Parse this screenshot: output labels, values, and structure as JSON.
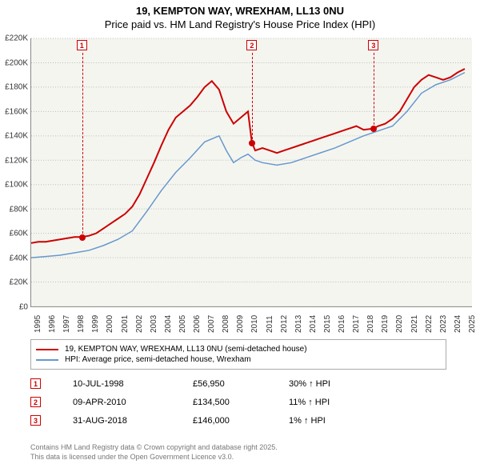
{
  "title": {
    "line1": "19, KEMPTON WAY, WREXHAM, LL13 0NU",
    "line2": "Price paid vs. HM Land Registry's House Price Index (HPI)"
  },
  "chart": {
    "type": "line",
    "background_color": "#f5f5f0",
    "grid_color": "#bbbbbb",
    "xlim": [
      1995,
      2025.5
    ],
    "ylim": [
      0,
      220000
    ],
    "yticks": [
      0,
      20000,
      40000,
      60000,
      80000,
      100000,
      120000,
      140000,
      160000,
      180000,
      200000,
      220000
    ],
    "ytick_labels": [
      "£0",
      "£20K",
      "£40K",
      "£60K",
      "£80K",
      "£100K",
      "£120K",
      "£140K",
      "£160K",
      "£180K",
      "£200K",
      "£220K"
    ],
    "xticks": [
      1995,
      1996,
      1997,
      1998,
      1999,
      2000,
      2001,
      2002,
      2003,
      2004,
      2005,
      2006,
      2007,
      2008,
      2009,
      2010,
      2011,
      2012,
      2013,
      2014,
      2015,
      2016,
      2017,
      2018,
      2019,
      2020,
      2021,
      2022,
      2023,
      2024,
      2025
    ],
    "label_fontsize": 10,
    "series": [
      {
        "name": "19, KEMPTON WAY, WREXHAM, LL13 0NU (semi-detached house)",
        "color": "#cc0000",
        "line_width": 2,
        "data": [
          [
            1995,
            52000
          ],
          [
            1995.5,
            53000
          ],
          [
            1996,
            53000
          ],
          [
            1996.5,
            54000
          ],
          [
            1997,
            55000
          ],
          [
            1997.5,
            56000
          ],
          [
            1998,
            57000
          ],
          [
            1998.5,
            56950
          ],
          [
            1999,
            58000
          ],
          [
            1999.5,
            60000
          ],
          [
            2000,
            64000
          ],
          [
            2000.5,
            68000
          ],
          [
            2001,
            72000
          ],
          [
            2001.5,
            76000
          ],
          [
            2002,
            82000
          ],
          [
            2002.5,
            92000
          ],
          [
            2003,
            105000
          ],
          [
            2003.5,
            118000
          ],
          [
            2004,
            132000
          ],
          [
            2004.5,
            145000
          ],
          [
            2005,
            155000
          ],
          [
            2005.5,
            160000
          ],
          [
            2006,
            165000
          ],
          [
            2006.5,
            172000
          ],
          [
            2007,
            180000
          ],
          [
            2007.5,
            185000
          ],
          [
            2008,
            178000
          ],
          [
            2008.5,
            160000
          ],
          [
            2009,
            150000
          ],
          [
            2009.5,
            155000
          ],
          [
            2010,
            160000
          ],
          [
            2010.27,
            134500
          ],
          [
            2010.5,
            128000
          ],
          [
            2011,
            130000
          ],
          [
            2011.5,
            128000
          ],
          [
            2012,
            126000
          ],
          [
            2012.5,
            128000
          ],
          [
            2013,
            130000
          ],
          [
            2013.5,
            132000
          ],
          [
            2014,
            134000
          ],
          [
            2014.5,
            136000
          ],
          [
            2015,
            138000
          ],
          [
            2015.5,
            140000
          ],
          [
            2016,
            142000
          ],
          [
            2016.5,
            144000
          ],
          [
            2017,
            146000
          ],
          [
            2017.5,
            148000
          ],
          [
            2018,
            145000
          ],
          [
            2018.67,
            146000
          ],
          [
            2019,
            148000
          ],
          [
            2019.5,
            150000
          ],
          [
            2020,
            154000
          ],
          [
            2020.5,
            160000
          ],
          [
            2021,
            170000
          ],
          [
            2021.5,
            180000
          ],
          [
            2022,
            186000
          ],
          [
            2022.5,
            190000
          ],
          [
            2023,
            188000
          ],
          [
            2023.5,
            186000
          ],
          [
            2024,
            188000
          ],
          [
            2024.5,
            192000
          ],
          [
            2025,
            195000
          ]
        ]
      },
      {
        "name": "HPI: Average price, semi-detached house, Wrexham",
        "color": "#6699cc",
        "line_width": 1.5,
        "data": [
          [
            1995,
            40000
          ],
          [
            1996,
            41000
          ],
          [
            1997,
            42000
          ],
          [
            1998,
            44000
          ],
          [
            1999,
            46000
          ],
          [
            2000,
            50000
          ],
          [
            2001,
            55000
          ],
          [
            2002,
            62000
          ],
          [
            2003,
            78000
          ],
          [
            2004,
            95000
          ],
          [
            2005,
            110000
          ],
          [
            2006,
            122000
          ],
          [
            2007,
            135000
          ],
          [
            2008,
            140000
          ],
          [
            2008.5,
            128000
          ],
          [
            2009,
            118000
          ],
          [
            2009.5,
            122000
          ],
          [
            2010,
            125000
          ],
          [
            2010.5,
            120000
          ],
          [
            2011,
            118000
          ],
          [
            2012,
            116000
          ],
          [
            2013,
            118000
          ],
          [
            2014,
            122000
          ],
          [
            2015,
            126000
          ],
          [
            2016,
            130000
          ],
          [
            2017,
            135000
          ],
          [
            2018,
            140000
          ],
          [
            2019,
            144000
          ],
          [
            2020,
            148000
          ],
          [
            2021,
            160000
          ],
          [
            2022,
            175000
          ],
          [
            2023,
            182000
          ],
          [
            2024,
            186000
          ],
          [
            2025,
            192000
          ]
        ]
      }
    ],
    "markers": [
      {
        "n": "1",
        "x": 1998.52,
        "y": 56950
      },
      {
        "n": "2",
        "x": 2010.27,
        "y": 134500
      },
      {
        "n": "3",
        "x": 2018.67,
        "y": 146000
      }
    ]
  },
  "legend": {
    "items": [
      {
        "color": "#cc0000",
        "label": "19, KEMPTON WAY, WREXHAM, LL13 0NU (semi-detached house)"
      },
      {
        "color": "#6699cc",
        "label": "HPI: Average price, semi-detached house, Wrexham"
      }
    ]
  },
  "sales": [
    {
      "n": "1",
      "date": "10-JUL-1998",
      "price": "£56,950",
      "diff": "30% ↑ HPI"
    },
    {
      "n": "2",
      "date": "09-APR-2010",
      "price": "£134,500",
      "diff": "11% ↑ HPI"
    },
    {
      "n": "3",
      "date": "31-AUG-2018",
      "price": "£146,000",
      "diff": "1% ↑ HPI"
    }
  ],
  "footer": {
    "line1": "Contains HM Land Registry data © Crown copyright and database right 2025.",
    "line2": "This data is licensed under the Open Government Licence v3.0."
  }
}
